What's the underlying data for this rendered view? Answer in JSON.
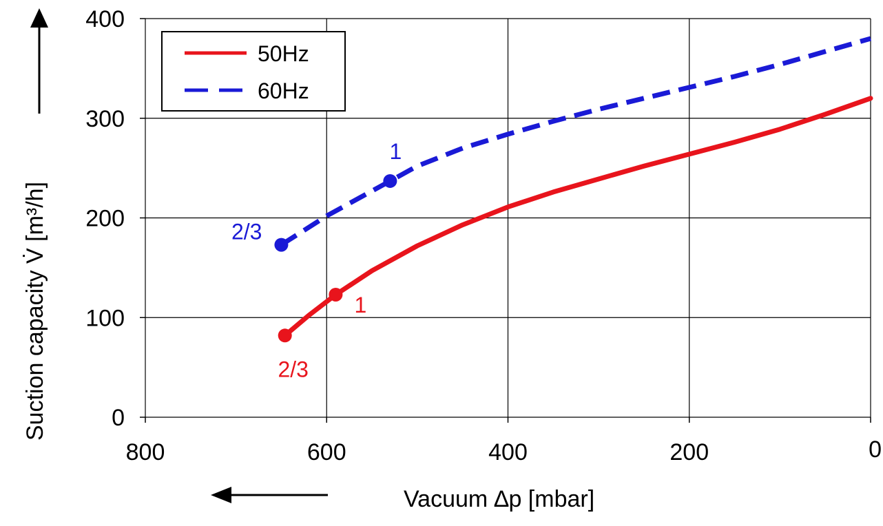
{
  "chart_data": {
    "type": "line",
    "title": "",
    "xlabel": "Vacuum ∆p [mbar]",
    "ylabel": "Suction capacity V̇ [m³/h]",
    "xlim": [
      800,
      0
    ],
    "ylim": [
      0,
      400
    ],
    "x_ticks": [
      800,
      600,
      400,
      200,
      0
    ],
    "y_ticks": [
      0,
      100,
      200,
      300,
      400
    ],
    "x_tick_labels": [
      "800",
      "600",
      "400",
      "200",
      "0"
    ],
    "y_tick_labels": [
      "0",
      "100",
      "200",
      "300",
      "400"
    ],
    "grid": true,
    "legend_position": "top-left",
    "series": [
      {
        "name": "50Hz",
        "color": "#e8141c",
        "style": "solid",
        "x": [
          646,
          620,
          590,
          550,
          500,
          450,
          400,
          350,
          300,
          250,
          200,
          150,
          100,
          50,
          0
        ],
        "y": [
          82,
          102,
          123,
          147,
          172,
          193,
          211,
          226,
          239,
          252,
          264,
          276,
          289,
          304,
          320
        ]
      },
      {
        "name": "60Hz",
        "color": "#1a1ad6",
        "style": "dashed",
        "x": [
          650,
          600,
          530,
          500,
          450,
          400,
          350,
          300,
          250,
          200,
          150,
          100,
          50,
          0
        ],
        "y": [
          173,
          202,
          237,
          252,
          270,
          284,
          297,
          309,
          320,
          331,
          342,
          354,
          367,
          380
        ]
      }
    ],
    "markers": [
      {
        "series": "60Hz",
        "x": 650,
        "y": 173,
        "label": "2/3",
        "color": "#1a1ad6"
      },
      {
        "series": "60Hz",
        "x": 530,
        "y": 237,
        "label": "1",
        "color": "#1a1ad6"
      },
      {
        "series": "50Hz",
        "x": 646,
        "y": 82,
        "label": "2/3",
        "color": "#e8141c"
      },
      {
        "series": "50Hz",
        "x": 590,
        "y": 123,
        "label": "1",
        "color": "#e8141c"
      }
    ]
  }
}
